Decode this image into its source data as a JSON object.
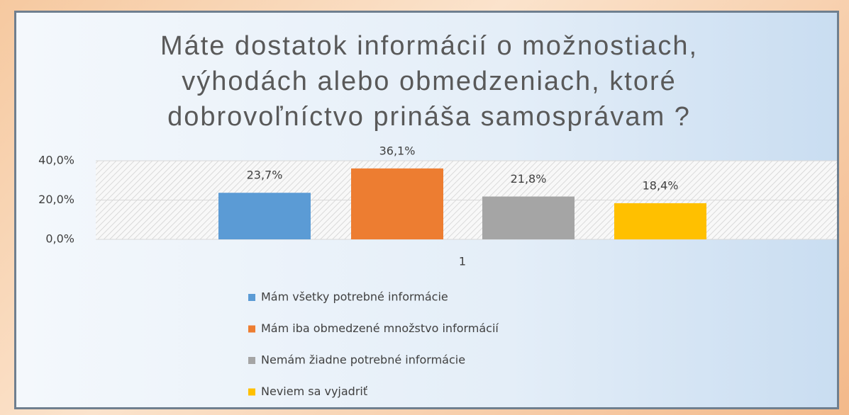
{
  "chart_data": {
    "type": "bar",
    "title": "Máte dostatok informácií o možnostiach, výhodách alebo obmedzeniach, ktoré dobrovoľníctvo prináša samosprávam ?",
    "categories": [
      "1"
    ],
    "series": [
      {
        "name": "Mám všetky potrebné informácie",
        "color": "#5b9bd5",
        "values": [
          23.7
        ],
        "value_labels": [
          "23,7%"
        ]
      },
      {
        "name": "Mám iba obmedzené množstvo informácií",
        "color": "#ed7d31",
        "values": [
          36.1
        ],
        "value_labels": [
          "36,1%"
        ]
      },
      {
        "name": "Nemám žiadne potrebné informácie",
        "color": "#a5a5a5",
        "values": [
          21.8
        ],
        "value_labels": [
          "21,8%"
        ]
      },
      {
        "name": "Neviem sa vyjadriť",
        "color": "#ffc000",
        "values": [
          18.4
        ],
        "value_labels": [
          "18,4%"
        ]
      }
    ],
    "ylim": [
      0,
      40
    ],
    "yticks": [
      {
        "value": 0,
        "label": "0,0%"
      },
      {
        "value": 20,
        "label": "20,0%"
      },
      {
        "value": 40,
        "label": "40,0%"
      }
    ],
    "grid": true,
    "legend": "bottom"
  }
}
